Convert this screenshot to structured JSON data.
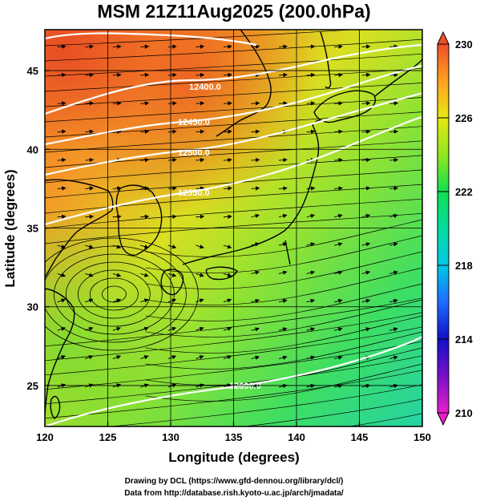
{
  "chart_data": {
    "type": "heatmap",
    "title": "MSM 21Z11Aug2025 (200.0hPa)",
    "xlabel": "Longitude (degrees)",
    "ylabel": "Latitude  (degrees)",
    "xlim": [
      120,
      150
    ],
    "ylim": [
      22.4,
      47.6
    ],
    "x_ticks": [
      "120",
      "125",
      "130",
      "135",
      "140",
      "145",
      "150"
    ],
    "y_ticks": [
      "25",
      "30",
      "35",
      "40",
      "45"
    ],
    "grid": true,
    "colorbar": {
      "min": 210,
      "max": 230,
      "ticks": [
        "230",
        "226",
        "222",
        "218",
        "214",
        "210"
      ],
      "colors": [
        "#e820c8",
        "#7a10c8",
        "#1010c8",
        "#1e6cff",
        "#00c8e6",
        "#00dca0",
        "#10e050",
        "#90e620",
        "#e8e810",
        "#ffa020",
        "#ee5028"
      ]
    },
    "contours": [
      {
        "value": 12500,
        "label": "12500.0"
      },
      {
        "value": 12400,
        "label": "12400.0"
      },
      {
        "value": 12450,
        "label": "12450.0"
      },
      {
        "value": 12550,
        "label": "12550.0"
      },
      {
        "value": 12600,
        "label": "12600.0"
      }
    ],
    "temperature_field_c": {
      "northwest_korea": 228,
      "central_japan": 225,
      "southeast": 220
    },
    "features": [
      "streamlines",
      "wind arrows",
      "coastlines",
      "anticyclonic circulation near 30N 125E"
    ]
  },
  "credits": {
    "line1": "Drawing by DCL (https://www.gfd-dennou.org/library/dcl/)",
    "line2": "Data from http://database.rish.kyoto-u.ac.jp/arch/jmadata/"
  }
}
